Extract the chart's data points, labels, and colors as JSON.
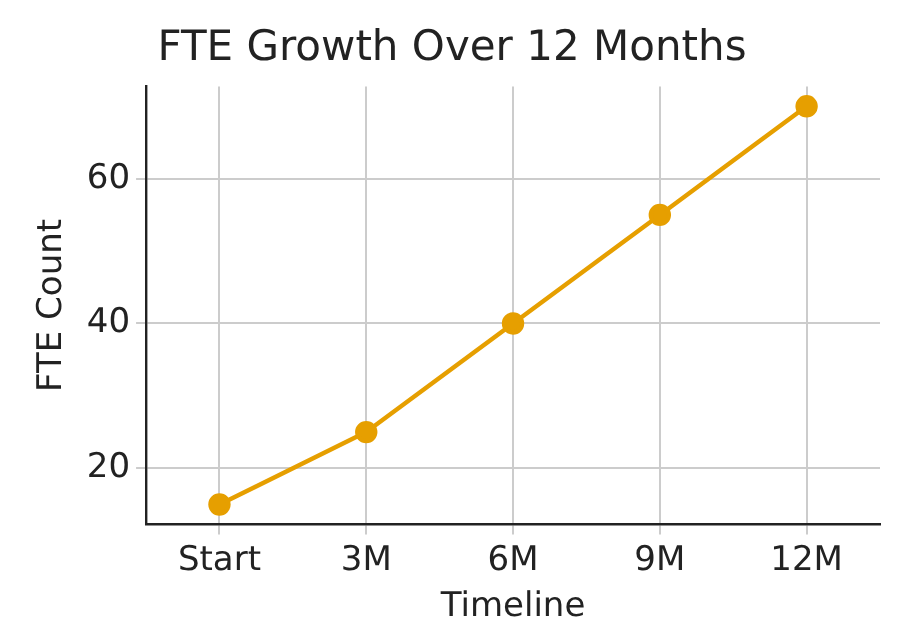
{
  "chart_data": {
    "type": "line",
    "title": "FTE Growth Over 12 Months",
    "xlabel": "Timeline",
    "ylabel": "FTE Count",
    "categories": [
      "Start",
      "3M",
      "6M",
      "9M",
      "12M"
    ],
    "series": [
      {
        "color": "#e69f00",
        "values": [
          15,
          25,
          40,
          55,
          70
        ]
      }
    ],
    "ylim": [
      12.25,
      72.75
    ],
    "yticks": [
      20,
      40,
      60
    ],
    "grid": true,
    "legend": false,
    "marker": "circle",
    "line_style": "solid"
  }
}
